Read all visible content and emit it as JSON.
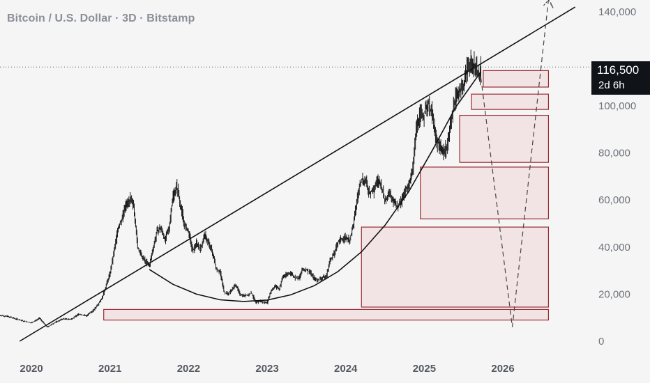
{
  "header": {
    "title": "Bitcoin / U.S. Dollar · 3D · Bitstamp"
  },
  "price_tag": {
    "value": "116,500",
    "countdown": "2d 6h"
  },
  "colors": {
    "background": "#f5f5f5",
    "candles": "#1a1a1a",
    "box_fill": "#f2e4e4",
    "box_stroke": "#9b2a32",
    "trendline": "#111111",
    "axis_text": "#6e737a"
  },
  "chart_data": {
    "type": "line",
    "title": "Bitcoin / U.S. Dollar · 3D · Bitstamp",
    "xlabel": "",
    "ylabel": "",
    "xlim": [
      2019.6,
      2027.1
    ],
    "ylim": [
      0,
      145000
    ],
    "grid": false,
    "y_ticks": [
      {
        "value": 0,
        "label": "0"
      },
      {
        "value": 20000,
        "label": "20,000"
      },
      {
        "value": 40000,
        "label": "40,000"
      },
      {
        "value": 60000,
        "label": "60,000"
      },
      {
        "value": 80000,
        "label": "80,000"
      },
      {
        "value": 100000,
        "label": "100,000"
      },
      {
        "value": 140000,
        "label": "140,000"
      }
    ],
    "x_ticks": [
      {
        "value": 2020.0,
        "label": "2020"
      },
      {
        "value": 2021.0,
        "label": "2021"
      },
      {
        "value": 2022.0,
        "label": "2022"
      },
      {
        "value": 2023.0,
        "label": "2023"
      },
      {
        "value": 2024.0,
        "label": "2024"
      },
      {
        "value": 2025.0,
        "label": "2025"
      },
      {
        "value": 2026.0,
        "label": "2026"
      }
    ],
    "series": [
      {
        "style": "price",
        "points": [
          [
            2019.6,
            11000
          ],
          [
            2019.7,
            10500
          ],
          [
            2019.8,
            9500
          ],
          [
            2019.9,
            8500
          ],
          [
            2020.0,
            7800
          ],
          [
            2020.1,
            9800
          ],
          [
            2020.2,
            6000
          ],
          [
            2020.3,
            8000
          ],
          [
            2020.4,
            9500
          ],
          [
            2020.5,
            9300
          ],
          [
            2020.6,
            11500
          ],
          [
            2020.7,
            10800
          ],
          [
            2020.8,
            13500
          ],
          [
            2020.9,
            18500
          ],
          [
            2021.0,
            29000
          ],
          [
            2021.05,
            38000
          ],
          [
            2021.1,
            48000
          ],
          [
            2021.15,
            52000
          ],
          [
            2021.2,
            58000
          ],
          [
            2021.25,
            60000
          ],
          [
            2021.3,
            58000
          ],
          [
            2021.35,
            40000
          ],
          [
            2021.4,
            36000
          ],
          [
            2021.45,
            34000
          ],
          [
            2021.5,
            32000
          ],
          [
            2021.55,
            40000
          ],
          [
            2021.6,
            47000
          ],
          [
            2021.65,
            48000
          ],
          [
            2021.7,
            43000
          ],
          [
            2021.75,
            48000
          ],
          [
            2021.8,
            62000
          ],
          [
            2021.85,
            66000
          ],
          [
            2021.9,
            57000
          ],
          [
            2021.95,
            49000
          ],
          [
            2022.0,
            46000
          ],
          [
            2022.05,
            38000
          ],
          [
            2022.1,
            42000
          ],
          [
            2022.15,
            39000
          ],
          [
            2022.2,
            45000
          ],
          [
            2022.25,
            42000
          ],
          [
            2022.3,
            38000
          ],
          [
            2022.35,
            31000
          ],
          [
            2022.4,
            29500
          ],
          [
            2022.45,
            21000
          ],
          [
            2022.5,
            20000
          ],
          [
            2022.55,
            22000
          ],
          [
            2022.6,
            24000
          ],
          [
            2022.65,
            20000
          ],
          [
            2022.7,
            19500
          ],
          [
            2022.75,
            19500
          ],
          [
            2022.8,
            20500
          ],
          [
            2022.85,
            16500
          ],
          [
            2022.9,
            17000
          ],
          [
            2022.95,
            16500
          ],
          [
            2023.0,
            16600
          ],
          [
            2023.05,
            21500
          ],
          [
            2023.1,
            23500
          ],
          [
            2023.15,
            22000
          ],
          [
            2023.2,
            27500
          ],
          [
            2023.25,
            28500
          ],
          [
            2023.3,
            29000
          ],
          [
            2023.35,
            27000
          ],
          [
            2023.4,
            26500
          ],
          [
            2023.45,
            30500
          ],
          [
            2023.5,
            30200
          ],
          [
            2023.55,
            29300
          ],
          [
            2023.6,
            26500
          ],
          [
            2023.65,
            26000
          ],
          [
            2023.7,
            27000
          ],
          [
            2023.75,
            27500
          ],
          [
            2023.8,
            34500
          ],
          [
            2023.85,
            37000
          ],
          [
            2023.9,
            42000
          ],
          [
            2023.95,
            43500
          ],
          [
            2024.0,
            44000
          ],
          [
            2024.05,
            42500
          ],
          [
            2024.1,
            50000
          ],
          [
            2024.15,
            62000
          ],
          [
            2024.2,
            69000
          ],
          [
            2024.25,
            68000
          ],
          [
            2024.3,
            63000
          ],
          [
            2024.35,
            64000
          ],
          [
            2024.4,
            68000
          ],
          [
            2024.45,
            66000
          ],
          [
            2024.5,
            59000
          ],
          [
            2024.55,
            64000
          ],
          [
            2024.6,
            60000
          ],
          [
            2024.65,
            57000
          ],
          [
            2024.7,
            59000
          ],
          [
            2024.75,
            63000
          ],
          [
            2024.8,
            67000
          ],
          [
            2024.85,
            72000
          ],
          [
            2024.9,
            92000
          ],
          [
            2024.95,
            97000
          ],
          [
            2025.0,
            96000
          ],
          [
            2025.05,
            102000
          ],
          [
            2025.1,
            96000
          ],
          [
            2025.15,
            85000
          ],
          [
            2025.2,
            83000
          ],
          [
            2025.25,
            80000
          ],
          [
            2025.3,
            85000
          ],
          [
            2025.35,
            96000
          ],
          [
            2025.4,
            104000
          ],
          [
            2025.45,
            107000
          ],
          [
            2025.5,
            108000
          ],
          [
            2025.55,
            118000
          ],
          [
            2025.6,
            117000
          ],
          [
            2025.65,
            118000
          ],
          [
            2025.7,
            112000
          ],
          [
            2025.72,
            116500
          ]
        ]
      },
      {
        "style": "solid",
        "name": "",
        "points": [
          [
            2019.85,
            0
          ],
          [
            2026.92,
            142000
          ]
        ]
      },
      {
        "style": "solid",
        "name": "",
        "points": [
          [
            2021.5,
            30500
          ],
          [
            2021.8,
            24200
          ],
          [
            2022.1,
            20000
          ],
          [
            2022.4,
            17600
          ],
          [
            2022.7,
            16900
          ],
          [
            2023.0,
            17500
          ],
          [
            2023.3,
            19700
          ],
          [
            2023.6,
            23600
          ],
          [
            2023.9,
            29600
          ],
          [
            2024.2,
            38000
          ],
          [
            2024.5,
            49300
          ],
          [
            2024.8,
            63500
          ],
          [
            2025.1,
            81000
          ],
          [
            2025.4,
            99500
          ],
          [
            2025.55,
            106500
          ],
          [
            2025.72,
            114500
          ]
        ]
      },
      {
        "style": "dashed",
        "name": "",
        "points": [
          [
            2025.72,
            112000
          ],
          [
            2026.12,
            6000
          ],
          [
            2026.58,
            145000
          ],
          [
            2026.65,
            141000
          ]
        ]
      }
    ],
    "zones": [
      {
        "x0": 2025.75,
        "x1": 2026.58,
        "y0": 108000,
        "y1": 115000
      },
      {
        "x0": 2025.6,
        "x1": 2026.58,
        "y0": 98500,
        "y1": 105000
      },
      {
        "x0": 2025.45,
        "x1": 2026.58,
        "y0": 76000,
        "y1": 96000
      },
      {
        "x0": 2024.95,
        "x1": 2026.58,
        "y0": 52000,
        "y1": 74000
      },
      {
        "x0": 2024.2,
        "x1": 2026.58,
        "y0": 14500,
        "y1": 48500
      },
      {
        "x0": 2020.92,
        "x1": 2026.58,
        "y0": 9000,
        "y1": 13500
      }
    ],
    "current_price": 116500
  }
}
